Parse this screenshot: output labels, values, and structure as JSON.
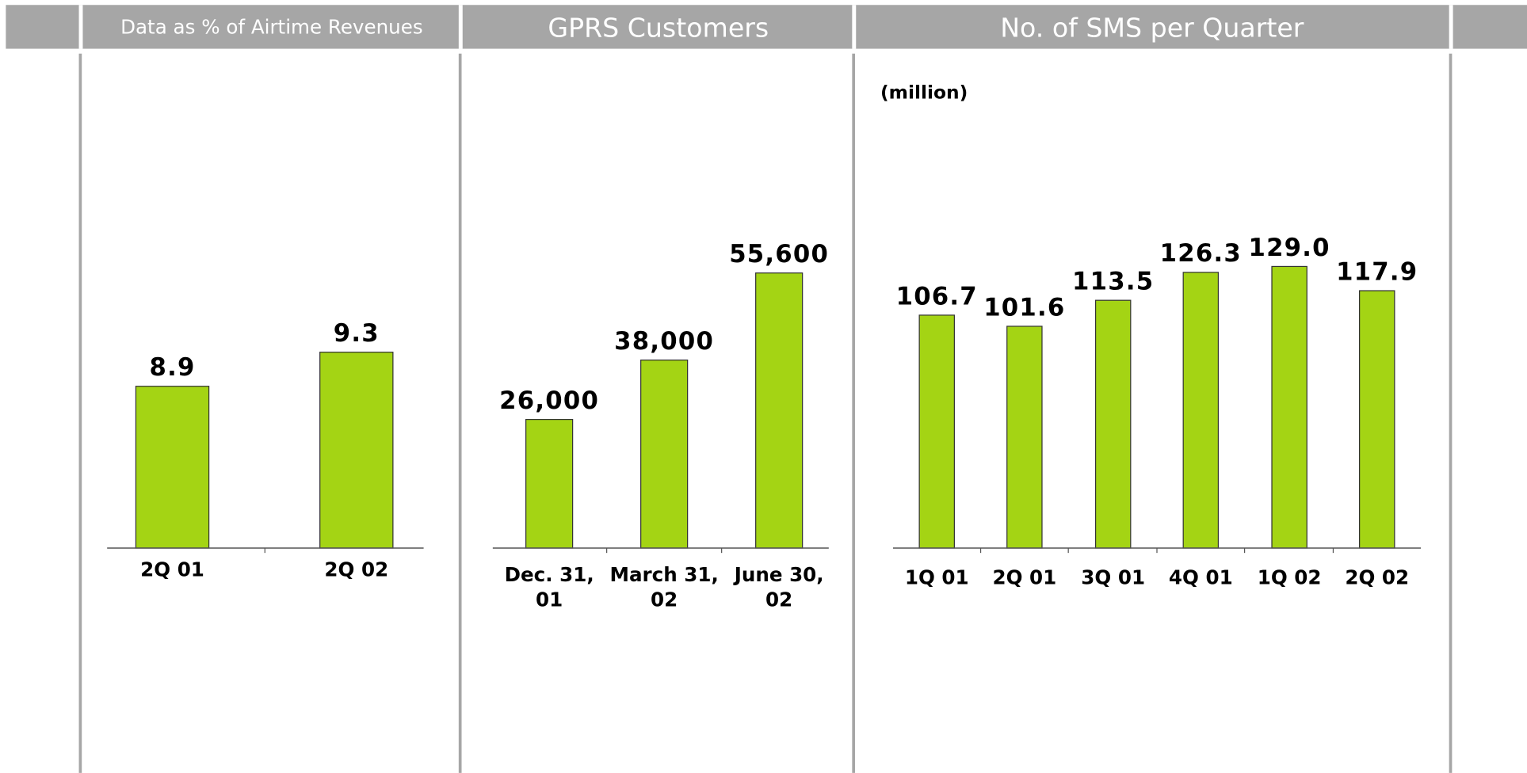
{
  "chart_data": [
    {
      "type": "bar",
      "title": "Data as % of Airtime Revenues",
      "categories": [
        "2Q 01",
        "2Q 02"
      ],
      "values": [
        8.9,
        9.3
      ],
      "color": "#a4d414",
      "ylim": [
        7,
        11
      ]
    },
    {
      "type": "bar",
      "title": "GPRS Customers",
      "categories": [
        "Dec. 31, 01",
        "March 31, 02",
        "June 30, 02"
      ],
      "values": [
        26000,
        38000,
        55600
      ],
      "value_labels": [
        "26,000",
        "38,000",
        "55,600"
      ],
      "color": "#a4d414",
      "ylim": [
        0,
        60000
      ]
    },
    {
      "type": "bar",
      "title": "No. of SMS per Quarter",
      "subtitle": "(million)",
      "categories": [
        "1Q 01",
        "2Q 01",
        "3Q 01",
        "4Q 01",
        "1Q 02",
        "2Q 02"
      ],
      "values": [
        106.7,
        101.6,
        113.5,
        126.3,
        129,
        117.9
      ],
      "value_labels": [
        "106.7",
        "101.6",
        "113.5",
        "126.3",
        "129.0",
        "117.9"
      ],
      "color": "#a4d414",
      "ylim": [
        0,
        140
      ]
    }
  ]
}
